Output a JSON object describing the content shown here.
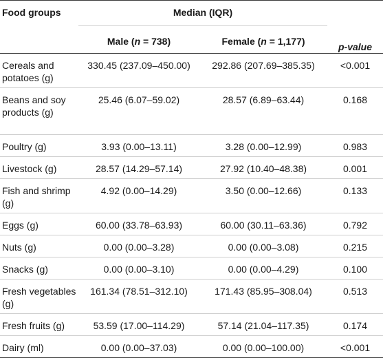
{
  "table": {
    "headers": {
      "food_groups": "Food groups",
      "median_iqr": "Median (IQR)",
      "male_prefix": "Male (",
      "male_n_label": "n",
      "male_n_value": " = 738)",
      "female_prefix": "Female (",
      "female_n_label": "n",
      "female_n_value": " = 1,177)",
      "p_value": "p-value"
    },
    "rows": [
      {
        "food": "Cereals and potatoes (g)",
        "male": "330.45 (237.09–450.00)",
        "female": "292.86 (207.69–385.35)",
        "p": "<0.001"
      },
      {
        "food": "Beans and soy products (g)",
        "male": "25.46 (6.07–59.02)",
        "female": "28.57 (6.89–63.44)",
        "p": "0.168"
      },
      {
        "food": "Poultry (g)",
        "male": "3.93 (0.00–13.11)",
        "female": "3.28 (0.00–12.99)",
        "p": "0.983"
      },
      {
        "food": "Livestock (g)",
        "male": "28.57 (14.29–57.14)",
        "female": "27.92 (10.40–48.38)",
        "p": "0.001"
      },
      {
        "food": "Fish and shrimp (g)",
        "male": "4.92 (0.00–14.29)",
        "female": "3.50 (0.00–12.66)",
        "p": "0.133"
      },
      {
        "food": "Eggs (g)",
        "male": "60.00 (33.78–63.93)",
        "female": "60.00 (30.11–63.36)",
        "p": "0.792"
      },
      {
        "food": "Nuts (g)",
        "male": "0.00 (0.00–3.28)",
        "female": "0.00 (0.00–3.08)",
        "p": "0.215"
      },
      {
        "food": "Snacks (g)",
        "male": "0.00 (0.00–3.10)",
        "female": "0.00 (0.00–4.29)",
        "p": "0.100"
      },
      {
        "food": "Fresh vegetables (g)",
        "male": "161.34 (78.51–312.10)",
        "female": "171.43 (85.95–308.04)",
        "p": "0.513"
      },
      {
        "food": "Fresh fruits (g)",
        "male": "53.59 (17.00–114.29)",
        "female": "57.14 (21.04–117.35)",
        "p": "0.174"
      },
      {
        "food": "Dairy (ml)",
        "male": "0.00 (0.00–37.03)",
        "female": "0.00 (0.00–100.00)",
        "p": "<0.001"
      }
    ]
  }
}
